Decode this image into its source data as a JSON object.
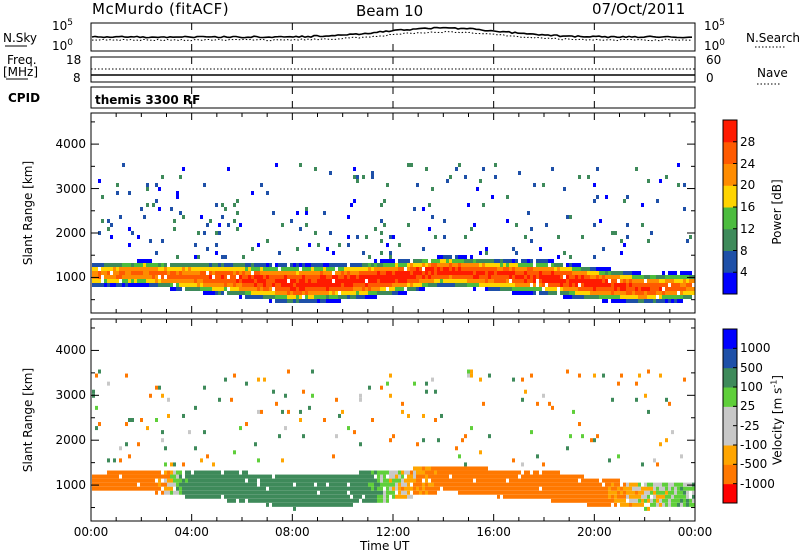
{
  "header": {
    "station": "McMurdo (fitACF)",
    "beam": "Beam 10",
    "date": "07/Oct/2011"
  },
  "noise_panel": {
    "left_label": "N.Sky",
    "right_label": "N.Search",
    "ticks_left": [
      "10^5",
      "10^0"
    ],
    "ticks_right": [
      "10^5",
      "10^0"
    ],
    "legend_sky": "solid",
    "legend_search": "dotted"
  },
  "freq_panel": {
    "left_label_line1": "Freq.",
    "left_label_line2": "[MHz]",
    "right_label": "Nave",
    "ticks_left": [
      "18",
      "8"
    ],
    "ticks_right": [
      "60",
      "0"
    ]
  },
  "cpid": {
    "label": "CPID",
    "value": "themis 3300 RF"
  },
  "x_axis": {
    "label": "Time UT",
    "ticks": [
      "00:00",
      "04:00",
      "08:00",
      "12:00",
      "16:00",
      "20:00",
      "00:00"
    ]
  },
  "colors": {
    "power": [
      "#0000ff",
      "#1e50a8",
      "#3e8a5a",
      "#4cbc3e",
      "#ffd400",
      "#ff8c00",
      "#ff5a00",
      "#ff1a00"
    ],
    "velocity": [
      "#ff0000",
      "#ff7800",
      "#ffa500",
      "#c8c8c8",
      "#c8c8c8",
      "#5fcf3a",
      "#3e8a5a",
      "#1e50a8",
      "#0000ff"
    ]
  },
  "chart_data": [
    {
      "type": "heatmap",
      "panel": "power",
      "ylabel": "Slant Range [km]",
      "yticks": [
        "1000",
        "2000",
        "3000",
        "4000"
      ],
      "ylim": [
        200,
        4700
      ],
      "xlim_hours": [
        0,
        24
      ],
      "colorbar_label": "Power [dB]",
      "colorbar_ticks": [
        "4",
        "8",
        "12",
        "16",
        "20",
        "24",
        "28"
      ],
      "colorbar_range": [
        0,
        32
      ],
      "main_band": {
        "hours": [
          0,
          2,
          4,
          6,
          8,
          10,
          12,
          14,
          16,
          18,
          20,
          22,
          24
        ],
        "center_km": [
          1050,
          1100,
          1000,
          950,
          850,
          900,
          1000,
          1150,
          1050,
          1000,
          850,
          750,
          800
        ],
        "width_km": [
          300,
          350,
          450,
          550,
          650,
          600,
          550,
          450,
          500,
          550,
          500,
          450,
          400
        ],
        "peak_db": [
          24,
          25,
          26,
          28,
          30,
          30,
          30,
          29,
          28,
          29,
          30,
          28,
          24
        ]
      }
    },
    {
      "type": "heatmap",
      "panel": "velocity",
      "ylabel": "Slant Range [km]",
      "yticks": [
        "1000",
        "2000",
        "3000",
        "4000"
      ],
      "ylim": [
        200,
        4700
      ],
      "xlim_hours": [
        0,
        24
      ],
      "colorbar_label": "Velocity [m s^-1]",
      "colorbar_ticks": [
        "1000",
        "500",
        "100",
        "25",
        "-25",
        "-100",
        "-500",
        "-1000"
      ],
      "velocity_band": {
        "hours": [
          0,
          2,
          4,
          6,
          8,
          10,
          12,
          14,
          16,
          18,
          20,
          22,
          24
        ],
        "velocity_ms": [
          -300,
          -300,
          200,
          300,
          250,
          300,
          0,
          -200,
          -350,
          -300,
          -200,
          0,
          60
        ]
      }
    }
  ]
}
